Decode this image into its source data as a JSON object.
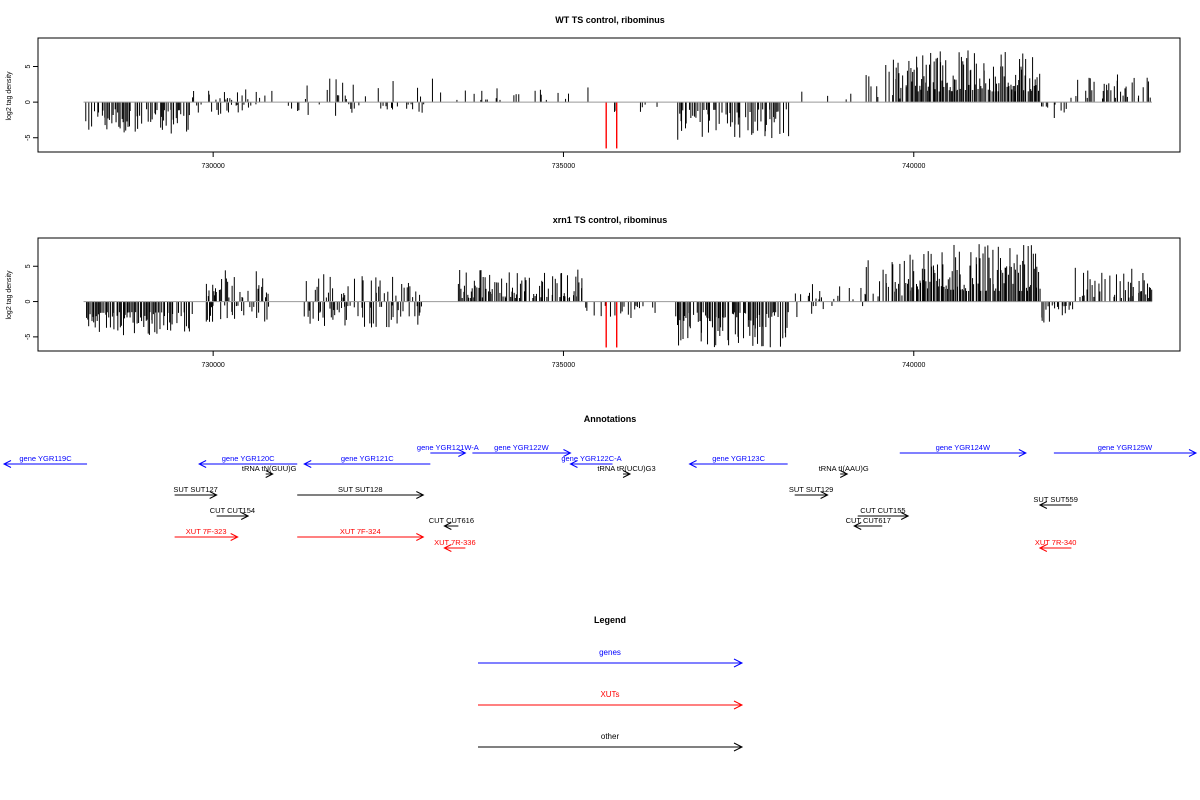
{
  "colors": {
    "gene": "#0000ff",
    "xut": "#ff0000",
    "other": "#000000",
    "bar": "#000000",
    "highlight": "#ff0000",
    "baseline": "#999999"
  },
  "chart_data": [
    {
      "type": "bar",
      "title": "WT TS control, ribominus",
      "ylabel": "log2 tag density",
      "xlim": [
        727500,
        743800
      ],
      "ylim": [
        -7,
        9
      ],
      "xticks": [
        730000,
        735000,
        740000
      ],
      "xtick_labels": [
        "730000",
        "735000",
        "740000"
      ],
      "yticks": [
        -5,
        0,
        5
      ],
      "ytick_labels": [
        "-5",
        "0",
        "5"
      ],
      "highlight_bars": [
        {
          "x": 735610,
          "y": -6.5
        },
        {
          "x": 735760,
          "y": -6.5
        }
      ],
      "segments": [
        {
          "x": [
            728150,
            729700
          ],
          "sign": -1,
          "min": 1.0,
          "max": 4.5,
          "density": 0.55
        },
        {
          "x": [
            729700,
            730600
          ],
          "sign": 1,
          "min": 0.3,
          "max": 1.8,
          "density": 0.3
        },
        {
          "x": [
            729700,
            730600
          ],
          "sign": -1,
          "min": 0.3,
          "max": 1.8,
          "density": 0.3
        },
        {
          "x": [
            730600,
            733200
          ],
          "sign": 1,
          "min": 0.3,
          "max": 3.5,
          "density": 0.12
        },
        {
          "x": [
            730600,
            733200
          ],
          "sign": -1,
          "min": 0.3,
          "max": 2.0,
          "density": 0.12
        },
        {
          "x": [
            733200,
            735500
          ],
          "sign": 1,
          "min": 0.3,
          "max": 2.3,
          "density": 0.18
        },
        {
          "x": [
            735500,
            736400
          ],
          "sign": -1,
          "min": 0.3,
          "max": 1.5,
          "density": 0.08
        },
        {
          "x": [
            736600,
            738200
          ],
          "sign": -1,
          "min": 1.0,
          "max": 5.5,
          "density": 0.6
        },
        {
          "x": [
            738300,
            739300
          ],
          "sign": 1,
          "min": 0.3,
          "max": 1.5,
          "density": 0.1
        },
        {
          "x": [
            739300,
            739900
          ],
          "sign": 1,
          "min": 0.5,
          "max": 6.0,
          "density": 0.4
        },
        {
          "x": [
            739900,
            741800
          ],
          "sign": 1,
          "min": 1.5,
          "max": 7.3,
          "density": 0.95
        },
        {
          "x": [
            741800,
            742200
          ],
          "sign": -1,
          "min": 0.3,
          "max": 2.5,
          "density": 0.3
        },
        {
          "x": [
            742200,
            743400
          ],
          "sign": 1,
          "min": 0.5,
          "max": 4.0,
          "density": 0.45
        }
      ]
    },
    {
      "type": "bar",
      "title": "xrn1 TS control, ribominus",
      "ylabel": "log2 tag density",
      "xlim": [
        727500,
        743800
      ],
      "ylim": [
        -7,
        9
      ],
      "xticks": [
        730000,
        735000,
        740000
      ],
      "xtick_labels": [
        "730000",
        "735000",
        "740000"
      ],
      "yticks": [
        -5,
        0,
        5
      ],
      "ytick_labels": [
        "-5",
        "0",
        "5"
      ],
      "highlight_bars": [
        {
          "x": 735610,
          "y": -6.5
        },
        {
          "x": 735760,
          "y": -6.5
        }
      ],
      "segments": [
        {
          "x": [
            728150,
            729700
          ],
          "sign": -1,
          "min": 1.5,
          "max": 4.8,
          "density": 0.8
        },
        {
          "x": [
            729900,
            730800
          ],
          "sign": 1,
          "min": 0.5,
          "max": 4.5,
          "density": 0.6
        },
        {
          "x": [
            729900,
            730800
          ],
          "sign": -1,
          "min": 0.5,
          "max": 3.0,
          "density": 0.4
        },
        {
          "x": [
            731300,
            733000
          ],
          "sign": 1,
          "min": 0.5,
          "max": 4.0,
          "density": 0.35
        },
        {
          "x": [
            731300,
            733000
          ],
          "sign": -1,
          "min": 0.5,
          "max": 3.8,
          "density": 0.55
        },
        {
          "x": [
            733500,
            735300
          ],
          "sign": 1,
          "min": 0.5,
          "max": 4.6,
          "density": 0.75
        },
        {
          "x": [
            735300,
            736300
          ],
          "sign": -1,
          "min": 0.5,
          "max": 2.5,
          "density": 0.25
        },
        {
          "x": [
            736600,
            738200
          ],
          "sign": -1,
          "min": 1.5,
          "max": 6.5,
          "density": 0.85
        },
        {
          "x": [
            738300,
            739300
          ],
          "sign": 1,
          "min": 0.3,
          "max": 2.5,
          "density": 0.25
        },
        {
          "x": [
            738300,
            739300
          ],
          "sign": -1,
          "min": 0.3,
          "max": 2.5,
          "density": 0.15
        },
        {
          "x": [
            739300,
            739900
          ],
          "sign": 1,
          "min": 0.5,
          "max": 6.0,
          "density": 0.5
        },
        {
          "x": [
            739900,
            741800
          ],
          "sign": 1,
          "min": 1.5,
          "max": 8.3,
          "density": 0.95
        },
        {
          "x": [
            741800,
            742300
          ],
          "sign": -1,
          "min": 0.3,
          "max": 3.0,
          "density": 0.4
        },
        {
          "x": [
            742300,
            743400
          ],
          "sign": 1,
          "min": 0.5,
          "max": 4.8,
          "density": 0.6
        }
      ]
    }
  ],
  "annotations": {
    "title": "Annotations",
    "features": [
      {
        "label": "gene YGR119C",
        "category": "gene",
        "start": 725800,
        "end": 728200,
        "strand": "-",
        "row": 1
      },
      {
        "label": "gene YGR120C",
        "category": "gene",
        "start": 729800,
        "end": 731200,
        "strand": "-",
        "row": 1
      },
      {
        "label": "gene YGR121C",
        "category": "gene",
        "start": 731300,
        "end": 733100,
        "strand": "-",
        "row": 1
      },
      {
        "label": "gene YGR121W-A",
        "category": "gene",
        "start": 733100,
        "end": 733600,
        "strand": "+",
        "row": 0
      },
      {
        "label": "gene YGR122W",
        "category": "gene",
        "start": 733700,
        "end": 735100,
        "strand": "+",
        "row": 0
      },
      {
        "label": "gene YGR122C-A",
        "category": "gene",
        "start": 735100,
        "end": 735700,
        "strand": "-",
        "row": 1
      },
      {
        "label": "gene YGR123C",
        "category": "gene",
        "start": 736800,
        "end": 738200,
        "strand": "-",
        "row": 1
      },
      {
        "label": "gene YGR124W",
        "category": "gene",
        "start": 739800,
        "end": 741600,
        "strand": "+",
        "row": 0
      },
      {
        "label": "gene YGR125W",
        "category": "gene",
        "start": 742000,
        "end": 744500,
        "strand": "+",
        "row": 0
      },
      {
        "label": "tRNA tN(GUU)G",
        "category": "other",
        "start": 730750,
        "end": 730850,
        "strand": "+",
        "row": 2
      },
      {
        "label": "tRNA tR(UCU)G3",
        "category": "other",
        "start": 735850,
        "end": 735950,
        "strand": "+",
        "row": 2
      },
      {
        "label": "tRNA tI(AAU)G",
        "category": "other",
        "start": 738950,
        "end": 739050,
        "strand": "+",
        "row": 2
      },
      {
        "label": "SUT SUT127",
        "category": "other",
        "start": 729450,
        "end": 730050,
        "strand": "+",
        "row": 3
      },
      {
        "label": "SUT SUT128",
        "category": "other",
        "start": 731200,
        "end": 733000,
        "strand": "+",
        "row": 3
      },
      {
        "label": "SUT SUT129",
        "category": "other",
        "start": 738300,
        "end": 738770,
        "strand": "+",
        "row": 3
      },
      {
        "label": "SUT SUT559",
        "category": "other",
        "start": 741800,
        "end": 742250,
        "strand": "-",
        "row": 4
      },
      {
        "label": "CUT CUT154",
        "category": "other",
        "start": 730050,
        "end": 730500,
        "strand": "+",
        "row": 5
      },
      {
        "label": "CUT CUT155",
        "category": "other",
        "start": 739200,
        "end": 739920,
        "strand": "+",
        "row": 5
      },
      {
        "label": "CUT CUT616",
        "category": "other",
        "start": 733300,
        "end": 733500,
        "strand": "-",
        "row": 6
      },
      {
        "label": "CUT CUT617",
        "category": "other",
        "start": 739150,
        "end": 739550,
        "strand": "-",
        "row": 6
      },
      {
        "label": "XUT 7F-323",
        "category": "xut",
        "start": 729450,
        "end": 730350,
        "strand": "+",
        "row": 7
      },
      {
        "label": "XUT 7F-324",
        "category": "xut",
        "start": 731200,
        "end": 733000,
        "strand": "+",
        "row": 7
      },
      {
        "label": "XUT 7R-336",
        "category": "xut",
        "start": 733300,
        "end": 733600,
        "strand": "-",
        "row": 8
      },
      {
        "label": "XUT 7R-340",
        "category": "xut",
        "start": 741800,
        "end": 742250,
        "strand": "-",
        "row": 8
      }
    ]
  },
  "legend": {
    "title": "Legend",
    "items": [
      {
        "label": "genes",
        "category": "gene"
      },
      {
        "label": "XUTs",
        "category": "xut"
      },
      {
        "label": "other",
        "category": "other"
      }
    ]
  }
}
